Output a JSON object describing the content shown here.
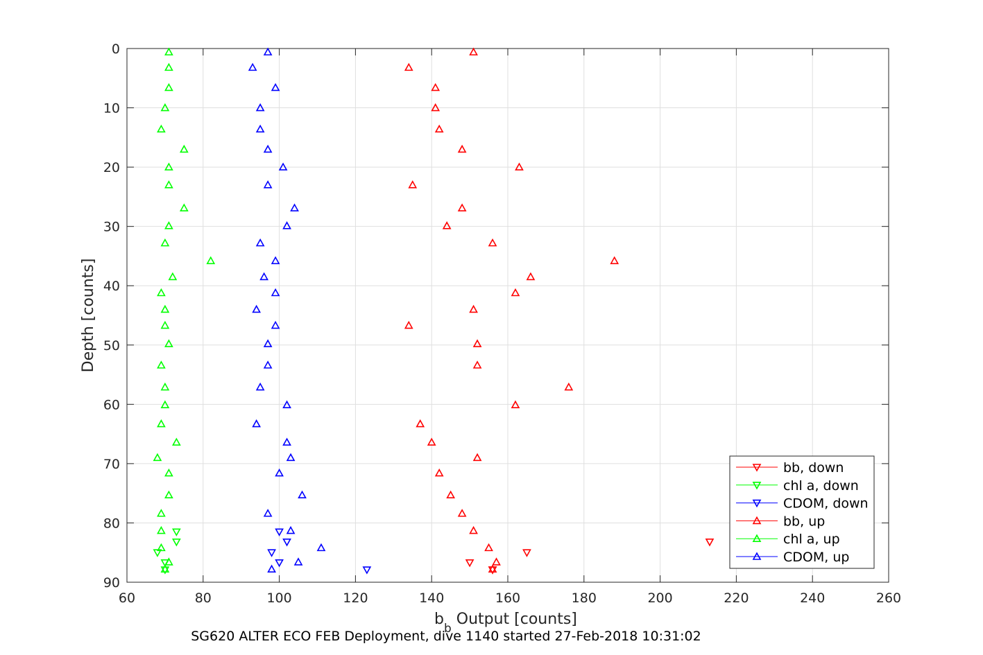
{
  "chart_data": {
    "type": "scatter",
    "xlabel_main": "b",
    "xlabel_sub": "b",
    "xlabel_rest": " Output [counts]",
    "ylabel": "Depth [counts]",
    "caption": "SG620 ALTER ECO FEB Deployment, dive 1140 started 27-Feb-2018 10:31:02",
    "xlim": [
      60,
      260
    ],
    "ylim": [
      0,
      90
    ],
    "y_reversed": true,
    "grid": true,
    "legend_position": "bottom-right",
    "xticks": [
      "60",
      "80",
      "100",
      "120",
      "140",
      "160",
      "180",
      "200",
      "220",
      "240",
      "260"
    ],
    "yticks": [
      "0",
      "10",
      "20",
      "30",
      "40",
      "50",
      "60",
      "70",
      "80",
      "90"
    ],
    "colors": {
      "red": "#ff0000",
      "green": "#00ff00",
      "blue": "#0000ff"
    },
    "series": [
      {
        "name": "bb, down",
        "color": "#ff0000",
        "marker": "triangle-down",
        "x": [
          213,
          165,
          150,
          156,
          156
        ],
        "y": [
          83.2,
          85.0,
          86.7,
          87.9,
          87.9
        ]
      },
      {
        "name": "chl a, down",
        "color": "#00ff00",
        "marker": "triangle-down",
        "x": [
          73,
          73,
          68,
          70,
          70
        ],
        "y": [
          81.5,
          83.2,
          85.0,
          86.7,
          87.9
        ]
      },
      {
        "name": "CDOM, down",
        "color": "#0000ff",
        "marker": "triangle-down",
        "x": [
          100,
          102,
          98,
          100,
          123
        ],
        "y": [
          81.5,
          83.2,
          85.0,
          86.7,
          87.9
        ]
      },
      {
        "name": "bb, up",
        "color": "#ff0000",
        "marker": "triangle-up",
        "x": [
          151,
          134,
          141,
          141,
          142,
          148,
          163,
          135,
          148,
          144,
          156,
          188,
          166,
          162,
          151,
          134,
          152,
          152,
          176,
          162,
          137,
          140,
          152,
          142,
          145,
          148,
          151,
          155,
          157,
          156
        ],
        "y": [
          0.6,
          3.2,
          6.6,
          10.0,
          13.6,
          17.0,
          20.0,
          23.0,
          26.9,
          29.9,
          32.8,
          35.8,
          38.5,
          41.2,
          44.0,
          46.7,
          49.8,
          53.4,
          57.1,
          60.1,
          63.3,
          66.4,
          69.0,
          71.6,
          75.3,
          78.4,
          81.3,
          84.2,
          86.6,
          87.8
        ]
      },
      {
        "name": "chl a, up",
        "color": "#00ff00",
        "marker": "triangle-up",
        "x": [
          71,
          71,
          71,
          70,
          69,
          75,
          71,
          71,
          75,
          71,
          70,
          82,
          72,
          69,
          70,
          70,
          71,
          69,
          70,
          70,
          69,
          73,
          68,
          71,
          71,
          69,
          69,
          69,
          71,
          70
        ],
        "y": [
          0.6,
          3.2,
          6.6,
          10.0,
          13.6,
          17.0,
          20.0,
          23.0,
          26.9,
          29.9,
          32.8,
          35.8,
          38.5,
          41.2,
          44.0,
          46.7,
          49.8,
          53.4,
          57.1,
          60.1,
          63.3,
          66.4,
          69.0,
          71.6,
          75.3,
          78.4,
          81.3,
          84.2,
          86.6,
          87.8
        ]
      },
      {
        "name": "CDOM, up",
        "color": "#0000ff",
        "marker": "triangle-up",
        "x": [
          97,
          93,
          99,
          95,
          95,
          97,
          101,
          97,
          104,
          102,
          95,
          99,
          96,
          99,
          94,
          99,
          97,
          97,
          95,
          102,
          94,
          102,
          103,
          100,
          106,
          97,
          103,
          111,
          105,
          98
        ],
        "y": [
          0.6,
          3.2,
          6.6,
          10.0,
          13.6,
          17.0,
          20.0,
          23.0,
          26.9,
          29.9,
          32.8,
          35.8,
          38.5,
          41.2,
          44.0,
          46.7,
          49.8,
          53.4,
          57.1,
          60.1,
          63.3,
          66.4,
          69.0,
          71.6,
          75.3,
          78.4,
          81.3,
          84.2,
          86.6,
          87.8
        ]
      }
    ]
  }
}
